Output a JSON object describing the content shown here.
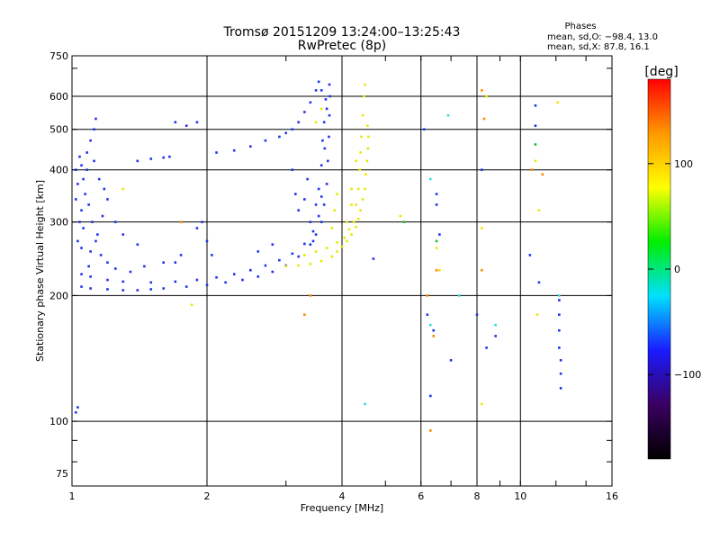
{
  "chart_data": {
    "type": "scatter",
    "title": "Tromsø 20151209 13:24:00–13:25:43",
    "subtitle": "RwPretec (8p)",
    "xlabel": "Frequency [MHz]",
    "ylabel": "Stationary phase Virtual Height [km]",
    "xscale": "log",
    "yscale": "log",
    "xlim": [
      1,
      16
    ],
    "ylim": [
      70,
      750
    ],
    "xticks": [
      1,
      2,
      4,
      6,
      8,
      10,
      16
    ],
    "xtick_labels": [
      "1",
      "2",
      "4",
      "6",
      "8",
      "10",
      "16"
    ],
    "xgrid": [
      2,
      4,
      6,
      8,
      10
    ],
    "yticks": [
      75,
      100,
      200,
      300,
      400,
      500,
      600,
      750
    ],
    "ytick_labels": [
      "75",
      "100",
      "200",
      "300",
      "400",
      "500",
      "600",
      "750"
    ],
    "ygrid": [
      100,
      200,
      300,
      400,
      500,
      600
    ],
    "grid": true,
    "stats": {
      "heading": "Phases",
      "line_o": "mean, sd,O: −98.4, 13.0",
      "line_x": "mean, sd,X:  87.8, 16.1"
    },
    "colorbar": {
      "label": "[deg]",
      "range": [
        -180,
        180
      ],
      "ticks": [
        100,
        0,
        -100
      ],
      "tick_labels": [
        "100",
        "0",
        "−100"
      ],
      "placement": "right",
      "stops": [
        "#000000",
        "#3a0060",
        "#1a1aff",
        "#00e0ff",
        "#00ee00",
        "#ffff00",
        "#ff9900",
        "#ff0000"
      ]
    },
    "series": [
      {
        "mode": "O",
        "color": "#2233ee",
        "points": [
          [
            1.02,
            105
          ],
          [
            1.03,
            108
          ],
          [
            1.05,
            210
          ],
          [
            1.1,
            208
          ],
          [
            1.2,
            207
          ],
          [
            1.3,
            206
          ],
          [
            1.4,
            206
          ],
          [
            1.5,
            207
          ],
          [
            1.6,
            208
          ],
          [
            1.8,
            210
          ],
          [
            2.0,
            212
          ],
          [
            2.2,
            215
          ],
          [
            2.4,
            218
          ],
          [
            2.6,
            222
          ],
          [
            2.8,
            228
          ],
          [
            3.0,
            236
          ],
          [
            3.2,
            248
          ],
          [
            3.4,
            265
          ],
          [
            3.5,
            280
          ],
          [
            3.6,
            300
          ],
          [
            3.65,
            330
          ],
          [
            3.7,
            370
          ],
          [
            3.72,
            420
          ],
          [
            3.74,
            480
          ],
          [
            3.75,
            540
          ],
          [
            3.76,
            600
          ],
          [
            3.75,
            640
          ],
          [
            1.05,
            225
          ],
          [
            1.1,
            222
          ],
          [
            1.2,
            218
          ],
          [
            1.3,
            216
          ],
          [
            1.5,
            215
          ],
          [
            1.7,
            216
          ],
          [
            1.9,
            218
          ],
          [
            2.1,
            221
          ],
          [
            2.3,
            225
          ],
          [
            2.5,
            230
          ],
          [
            2.7,
            236
          ],
          [
            2.9,
            243
          ],
          [
            3.1,
            252
          ],
          [
            3.3,
            266
          ],
          [
            3.45,
            285
          ],
          [
            3.55,
            310
          ],
          [
            3.6,
            345
          ],
          [
            1.05,
            260
          ],
          [
            1.06,
            290
          ],
          [
            1.05,
            320
          ],
          [
            1.07,
            350
          ],
          [
            1.06,
            380
          ],
          [
            1.05,
            410
          ],
          [
            1.08,
            440
          ],
          [
            1.1,
            470
          ],
          [
            1.12,
            500
          ],
          [
            1.13,
            530
          ],
          [
            1.12,
            420
          ],
          [
            1.15,
            380
          ],
          [
            1.18,
            360
          ],
          [
            1.2,
            340
          ],
          [
            1.17,
            310
          ],
          [
            1.14,
            280
          ],
          [
            1.1,
            255
          ],
          [
            1.09,
            235
          ],
          [
            1.02,
            400
          ],
          [
            1.04,
            430
          ],
          [
            1.03,
            370
          ],
          [
            1.02,
            340
          ],
          [
            1.04,
            300
          ],
          [
            1.03,
            270
          ],
          [
            1.08,
            400
          ],
          [
            1.09,
            330
          ],
          [
            1.11,
            300
          ],
          [
            1.13,
            270
          ],
          [
            1.16,
            250
          ],
          [
            1.2,
            240
          ],
          [
            1.25,
            232
          ],
          [
            1.35,
            228
          ],
          [
            1.45,
            235
          ],
          [
            1.6,
            240
          ],
          [
            1.25,
            300
          ],
          [
            1.3,
            280
          ],
          [
            1.4,
            265
          ],
          [
            1.9,
            290
          ],
          [
            1.95,
            300
          ],
          [
            2.0,
            270
          ],
          [
            2.05,
            250
          ],
          [
            1.75,
            250
          ],
          [
            1.7,
            240
          ],
          [
            2.6,
            255
          ],
          [
            2.8,
            265
          ],
          [
            1.4,
            420
          ],
          [
            1.5,
            425
          ],
          [
            1.6,
            428
          ],
          [
            1.65,
            430
          ],
          [
            1.7,
            520
          ],
          [
            1.8,
            510
          ],
          [
            1.9,
            520
          ],
          [
            2.1,
            440
          ],
          [
            2.3,
            445
          ],
          [
            2.5,
            455
          ],
          [
            2.7,
            470
          ],
          [
            2.9,
            480
          ],
          [
            3.0,
            490
          ],
          [
            3.1,
            500
          ],
          [
            3.2,
            520
          ],
          [
            3.3,
            550
          ],
          [
            3.4,
            580
          ],
          [
            3.5,
            620
          ],
          [
            3.55,
            650
          ],
          [
            3.6,
            620
          ],
          [
            3.1,
            400
          ],
          [
            3.15,
            350
          ],
          [
            3.2,
            320
          ],
          [
            3.3,
            340
          ],
          [
            3.35,
            380
          ],
          [
            3.4,
            300
          ],
          [
            3.45,
            270
          ],
          [
            3.5,
            330
          ],
          [
            3.55,
            360
          ],
          [
            3.6,
            410
          ],
          [
            3.62,
            470
          ],
          [
            3.65,
            520
          ],
          [
            3.7,
            560
          ],
          [
            3.68,
            590
          ],
          [
            3.66,
            450
          ],
          [
            4.7,
            245
          ],
          [
            6.3,
            115
          ],
          [
            6.5,
            350
          ],
          [
            6.5,
            330
          ],
          [
            6.6,
            280
          ],
          [
            6.2,
            180
          ],
          [
            6.4,
            165
          ],
          [
            7.0,
            140
          ],
          [
            8.0,
            180
          ],
          [
            8.2,
            400
          ],
          [
            8.4,
            150
          ],
          [
            8.8,
            160
          ],
          [
            10.8,
            570
          ],
          [
            10.8,
            510
          ],
          [
            11.0,
            215
          ],
          [
            12.2,
            195
          ],
          [
            12.2,
            180
          ],
          [
            12.2,
            165
          ],
          [
            12.2,
            150
          ],
          [
            12.3,
            140
          ],
          [
            12.3,
            130
          ],
          [
            12.3,
            120
          ],
          [
            10.5,
            250
          ],
          [
            6.1,
            500
          ]
        ]
      },
      {
        "mode": "X",
        "color": "#e8e800",
        "points": [
          [
            3.0,
            235
          ],
          [
            3.2,
            236
          ],
          [
            3.4,
            238
          ],
          [
            3.6,
            242
          ],
          [
            3.8,
            248
          ],
          [
            3.9,
            255
          ],
          [
            4.0,
            262
          ],
          [
            4.1,
            270
          ],
          [
            4.2,
            280
          ],
          [
            4.3,
            292
          ],
          [
            4.35,
            305
          ],
          [
            4.4,
            320
          ],
          [
            4.45,
            340
          ],
          [
            4.5,
            360
          ],
          [
            4.52,
            390
          ],
          [
            4.55,
            420
          ],
          [
            4.57,
            450
          ],
          [
            4.58,
            480
          ],
          [
            4.56,
            510
          ],
          [
            3.3,
            250
          ],
          [
            3.5,
            255
          ],
          [
            3.7,
            260
          ],
          [
            3.9,
            268
          ],
          [
            4.05,
            275
          ],
          [
            4.15,
            288
          ],
          [
            4.25,
            300
          ],
          [
            4.3,
            330
          ],
          [
            4.35,
            360
          ],
          [
            4.38,
            400
          ],
          [
            4.4,
            440
          ],
          [
            4.42,
            480
          ],
          [
            4.45,
            540
          ],
          [
            4.48,
            600
          ],
          [
            4.5,
            640
          ],
          [
            3.8,
            290
          ],
          [
            3.85,
            320
          ],
          [
            3.9,
            350
          ],
          [
            4.2,
            330
          ],
          [
            4.2,
            360
          ],
          [
            4.3,
            420
          ],
          [
            4.1,
            300
          ],
          [
            3.5,
            520
          ],
          [
            3.6,
            560
          ],
          [
            1.85,
            190
          ],
          [
            1.3,
            360
          ],
          [
            5.4,
            310
          ],
          [
            6.5,
            260
          ],
          [
            8.2,
            110
          ],
          [
            8.4,
            600
          ],
          [
            10.8,
            420
          ],
          [
            10.9,
            180
          ],
          [
            11.0,
            320
          ],
          [
            8.2,
            290
          ],
          [
            6.6,
            230
          ],
          [
            12.1,
            580
          ]
        ]
      },
      {
        "mode": "other",
        "color": "#ff8800",
        "points": [
          [
            3.4,
            200
          ],
          [
            3.3,
            180
          ],
          [
            6.3,
            95
          ],
          [
            6.4,
            160
          ],
          [
            6.5,
            230
          ],
          [
            8.2,
            620
          ],
          [
            8.3,
            530
          ],
          [
            10.6,
            400
          ],
          [
            6.2,
            200
          ],
          [
            8.2,
            230
          ],
          [
            1.75,
            300
          ],
          [
            11.2,
            390
          ]
        ]
      },
      {
        "mode": "other",
        "color": "#33dddd",
        "points": [
          [
            4.5,
            110
          ],
          [
            6.3,
            170
          ],
          [
            6.3,
            380
          ],
          [
            6.9,
            540
          ],
          [
            7.3,
            200
          ],
          [
            12.2,
            200
          ],
          [
            8.8,
            170
          ]
        ]
      },
      {
        "mode": "other",
        "color": "#22bb33",
        "points": [
          [
            5.5,
            300
          ],
          [
            6.5,
            270
          ],
          [
            10.8,
            460
          ]
        ]
      }
    ]
  }
}
